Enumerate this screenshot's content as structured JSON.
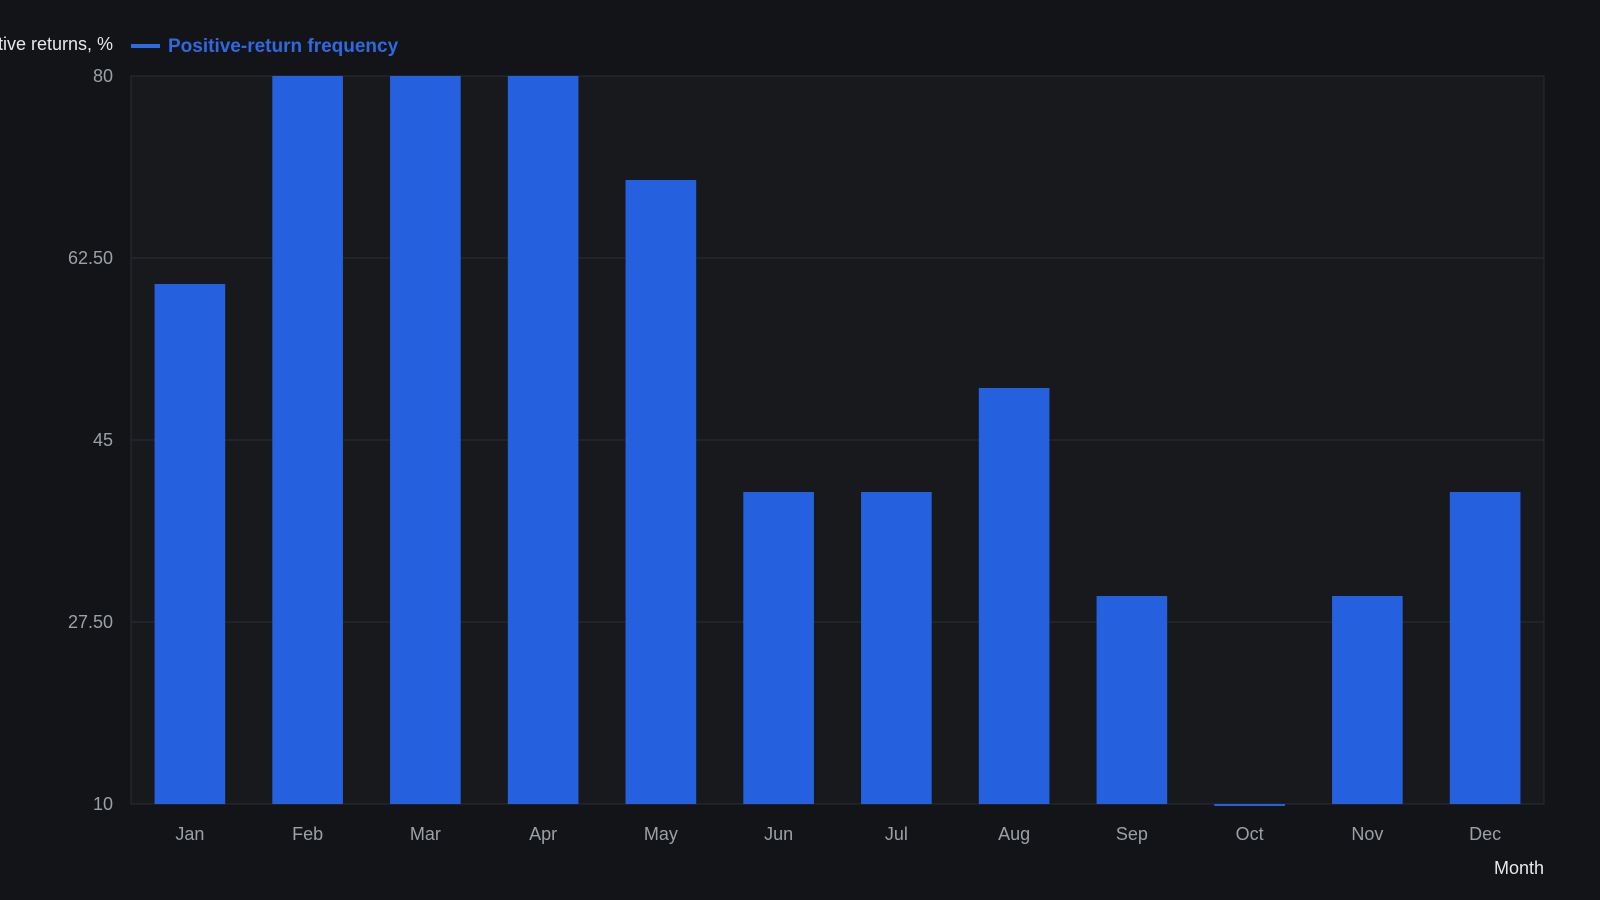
{
  "chart_data": {
    "type": "bar",
    "title": "",
    "ylabel": "Months with positive returns, %",
    "xlabel": "Month",
    "categories": [
      "Jan",
      "Feb",
      "Mar",
      "Apr",
      "May",
      "Jun",
      "Jul",
      "Aug",
      "Sep",
      "Oct",
      "Nov",
      "Dec"
    ],
    "series": [
      {
        "name": "Positive-return frequency",
        "values": [
          60,
          80,
          80,
          80,
          70,
          40,
          40,
          50,
          30,
          10,
          30,
          40
        ]
      }
    ],
    "ylim": [
      10,
      80
    ],
    "yticks": [
      "10",
      "27.50",
      "45",
      "62.50",
      "80"
    ],
    "grid": true,
    "legend_position": "top-left",
    "colors": {
      "background": "#131417",
      "plot_background": "#17191d",
      "bar": "#2560de",
      "legend_text": "#2f68e0",
      "grid": "#2a2d33",
      "axis_text": "#9aa0a6",
      "label_text": "#e6e8eb"
    }
  }
}
